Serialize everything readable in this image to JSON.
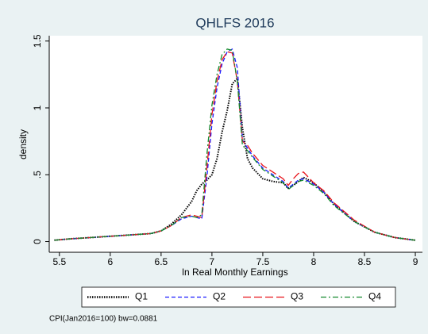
{
  "chart_data": {
    "type": "line",
    "title": "QHLFS 2016",
    "x_label": "ln Real Monthly Earnings",
    "y_label": "density",
    "note": "CPI(Jan2016=100) bw=0.0881",
    "x": [
      5.45,
      5.6,
      5.8,
      6.0,
      6.2,
      6.4,
      6.5,
      6.6,
      6.7,
      6.8,
      6.85,
      6.9,
      6.95,
      7.0,
      7.05,
      7.1,
      7.15,
      7.2,
      7.25,
      7.3,
      7.35,
      7.4,
      7.5,
      7.6,
      7.7,
      7.75,
      7.8,
      7.85,
      7.9,
      8.0,
      8.1,
      8.2,
      8.4,
      8.6,
      8.8,
      9.0
    ],
    "series": [
      {
        "name": "Q1",
        "color": "#000000",
        "values": [
          0.01,
          0.02,
          0.03,
          0.04,
          0.05,
          0.06,
          0.08,
          0.13,
          0.2,
          0.3,
          0.38,
          0.43,
          0.46,
          0.5,
          0.62,
          0.82,
          0.98,
          1.18,
          1.22,
          0.85,
          0.62,
          0.55,
          0.47,
          0.45,
          0.44,
          0.4,
          0.42,
          0.45,
          0.48,
          0.44,
          0.37,
          0.28,
          0.15,
          0.07,
          0.03,
          0.01
        ]
      },
      {
        "name": "Q2",
        "color": "#1a1aff",
        "values": [
          0.01,
          0.02,
          0.03,
          0.04,
          0.05,
          0.06,
          0.08,
          0.12,
          0.17,
          0.19,
          0.18,
          0.17,
          0.48,
          0.88,
          1.15,
          1.33,
          1.42,
          1.44,
          1.3,
          0.76,
          0.7,
          0.64,
          0.55,
          0.5,
          0.45,
          0.4,
          0.43,
          0.46,
          0.47,
          0.43,
          0.37,
          0.28,
          0.15,
          0.07,
          0.03,
          0.01
        ]
      },
      {
        "name": "Q3",
        "color": "#e8141b",
        "values": [
          0.01,
          0.02,
          0.03,
          0.04,
          0.05,
          0.06,
          0.08,
          0.12,
          0.18,
          0.2,
          0.19,
          0.18,
          0.55,
          0.95,
          1.2,
          1.36,
          1.42,
          1.41,
          1.2,
          0.75,
          0.72,
          0.66,
          0.57,
          0.52,
          0.47,
          0.42,
          0.47,
          0.51,
          0.52,
          0.44,
          0.38,
          0.29,
          0.16,
          0.07,
          0.03,
          0.01
        ]
      },
      {
        "name": "Q4",
        "color": "#148a2e",
        "values": [
          0.01,
          0.02,
          0.03,
          0.04,
          0.05,
          0.06,
          0.08,
          0.12,
          0.18,
          0.19,
          0.18,
          0.2,
          0.65,
          1.02,
          1.25,
          1.4,
          1.44,
          1.43,
          1.2,
          0.72,
          0.68,
          0.63,
          0.54,
          0.49,
          0.44,
          0.39,
          0.42,
          0.45,
          0.46,
          0.42,
          0.36,
          0.27,
          0.15,
          0.07,
          0.03,
          0.01
        ]
      }
    ],
    "xlim": [
      5.4,
      9.07
    ],
    "xticks": [
      5.5,
      6,
      6.5,
      7,
      7.5,
      8,
      8.5,
      9
    ],
    "ylim": [
      -0.08,
      1.54
    ],
    "yticks": [
      0,
      {
        "value": 0.5,
        "label": ".5"
      },
      1,
      1.5
    ],
    "legend": "bottom"
  }
}
